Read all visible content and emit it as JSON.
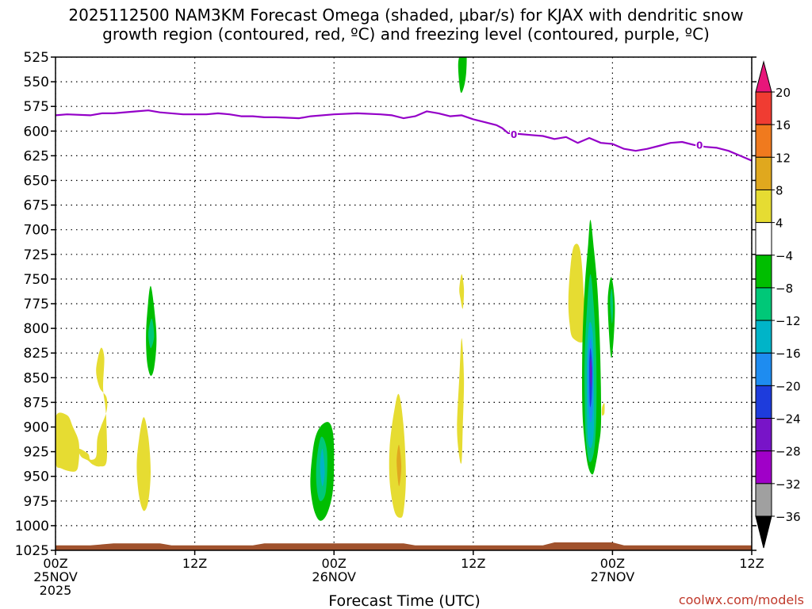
{
  "chart_data": {
    "type": "heatmap",
    "title_line1": "2025112500 NAM3KM Forecast Omega (shaded, μbar/s) for KJAX with dendritic snow",
    "title_line2": "growth region (contoured, red, ºC) and freezing level (contoured, purple, ºC)",
    "xlabel": "Forecast Time (UTC)",
    "credit": "coolwx.com/models",
    "x_range_hours": [
      0,
      60
    ],
    "y_range_hpa": [
      525,
      1025
    ],
    "y_ticks": [
      525,
      550,
      575,
      600,
      625,
      650,
      675,
      700,
      725,
      750,
      775,
      800,
      825,
      850,
      875,
      900,
      925,
      950,
      975,
      1000,
      1025
    ],
    "x_ticks": [
      {
        "hour": 0,
        "label": "00Z",
        "sub1": "25NOV",
        "sub2": "2025"
      },
      {
        "hour": 12,
        "label": "12Z",
        "sub1": "",
        "sub2": ""
      },
      {
        "hour": 24,
        "label": "00Z",
        "sub1": "26NOV",
        "sub2": ""
      },
      {
        "hour": 36,
        "label": "12Z",
        "sub1": "",
        "sub2": ""
      },
      {
        "hour": 48,
        "label": "00Z",
        "sub1": "27NOV",
        "sub2": ""
      },
      {
        "hour": 60,
        "label": "12Z",
        "sub1": "",
        "sub2": ""
      }
    ],
    "colorbar": {
      "labels": [
        "20",
        "16",
        "12",
        "8",
        "4",
        "−4",
        "−8",
        "−12",
        "−16",
        "−20",
        "−24",
        "−28",
        "−32",
        "−36"
      ],
      "bins": [
        {
          "range": ">20",
          "color": "#e8167a"
        },
        {
          "range": "16-20",
          "color": "#f03c32"
        },
        {
          "range": "12-16",
          "color": "#f07a1e"
        },
        {
          "range": "8-12",
          "color": "#e0a81e"
        },
        {
          "range": "4-8",
          "color": "#e6dc32"
        },
        {
          "range": "-4-4",
          "color": "#ffffff"
        },
        {
          "range": "-8--4",
          "color": "#00be00"
        },
        {
          "range": "-12--8",
          "color": "#00c878"
        },
        {
          "range": "-16--12",
          "color": "#00b4c8"
        },
        {
          "range": "-20--16",
          "color": "#1e8cf0"
        },
        {
          "range": "-24--20",
          "color": "#1e3cdc"
        },
        {
          "range": "-28--24",
          "color": "#7814c8"
        },
        {
          "range": "-32--28",
          "color": "#a000c8"
        },
        {
          "range": "-36--32",
          "color": "#a0a0a0"
        },
        {
          "range": "<-36",
          "color": "#000000"
        }
      ]
    },
    "freezing_level": {
      "label": "0",
      "color": "#9400c8",
      "points": [
        [
          0,
          584
        ],
        [
          1,
          583
        ],
        [
          3,
          584
        ],
        [
          4,
          582
        ],
        [
          5,
          582
        ],
        [
          7,
          580
        ],
        [
          8,
          579
        ],
        [
          9,
          581
        ],
        [
          11,
          583
        ],
        [
          13,
          583
        ],
        [
          14,
          582
        ],
        [
          15,
          583
        ],
        [
          16,
          585
        ],
        [
          17,
          585
        ],
        [
          18,
          586
        ],
        [
          19,
          586
        ],
        [
          21,
          587
        ],
        [
          22,
          585
        ],
        [
          24,
          583
        ],
        [
          26,
          582
        ],
        [
          28,
          583
        ],
        [
          29,
          584
        ],
        [
          30,
          587
        ],
        [
          31,
          585
        ],
        [
          32,
          580
        ],
        [
          33,
          582
        ],
        [
          34,
          585
        ],
        [
          35,
          584
        ],
        [
          36,
          588
        ],
        [
          37,
          591
        ],
        [
          38,
          594
        ],
        [
          38.5,
          597
        ],
        [
          39,
          602
        ],
        [
          40,
          603
        ],
        [
          41,
          604
        ],
        [
          42,
          605
        ],
        [
          43,
          608
        ],
        [
          44,
          606
        ],
        [
          45,
          612
        ],
        [
          46,
          607
        ],
        [
          47,
          612
        ],
        [
          48,
          613
        ],
        [
          49,
          618
        ],
        [
          50,
          620
        ],
        [
          51,
          618
        ],
        [
          52,
          615
        ],
        [
          53,
          612
        ],
        [
          54,
          611
        ],
        [
          55,
          614
        ],
        [
          56,
          616
        ],
        [
          57,
          617
        ],
        [
          58,
          620
        ],
        [
          59,
          625
        ],
        [
          60,
          630
        ]
      ],
      "label_positions": [
        [
          39.5,
          603
        ],
        [
          55.5,
          614
        ]
      ]
    },
    "omega_regions": [
      {
        "value": 6,
        "color": "#e6dc32",
        "points": [
          [
            0,
            890
          ],
          [
            1,
            888
          ],
          [
            1.5,
            900
          ],
          [
            2,
            915
          ],
          [
            2,
            935
          ],
          [
            1.7,
            945
          ],
          [
            0.5,
            942
          ],
          [
            0,
            935
          ]
        ]
      },
      {
        "value": 6,
        "color": "#e6dc32",
        "points": [
          [
            2,
            922
          ],
          [
            2.8,
            927
          ],
          [
            3,
            933
          ],
          [
            3.5,
            930
          ],
          [
            3.6,
            912
          ],
          [
            3.9,
            900
          ],
          [
            4.4,
            884
          ],
          [
            4.4,
            870
          ],
          [
            3.8,
            860
          ],
          [
            3.5,
            842
          ],
          [
            3.9,
            820
          ],
          [
            4.2,
            830
          ],
          [
            4.1,
            860
          ],
          [
            4.3,
            880
          ],
          [
            4.4,
            900
          ],
          [
            4.4,
            935
          ],
          [
            3.8,
            940
          ],
          [
            3.2,
            938
          ],
          [
            2.8,
            934
          ],
          [
            2.2,
            930
          ]
        ]
      },
      {
        "value": 6,
        "color": "#e6dc32",
        "points": [
          [
            7,
            940
          ],
          [
            7.2,
            912
          ],
          [
            7.6,
            890
          ],
          [
            8.0,
            910
          ],
          [
            8.2,
            945
          ],
          [
            8.0,
            975
          ],
          [
            7.6,
            985
          ],
          [
            7.2,
            970
          ]
        ]
      },
      {
        "value": -6,
        "color": "#00be00",
        "points": [
          [
            7.8,
            810
          ],
          [
            7.9,
            785
          ],
          [
            8.2,
            757
          ],
          [
            8.6,
            790
          ],
          [
            8.7,
            815
          ],
          [
            8.5,
            840
          ],
          [
            8.2,
            848
          ],
          [
            7.9,
            835
          ]
        ]
      },
      {
        "value": -10,
        "color": "#00c878",
        "points": [
          [
            8.0,
            805
          ],
          [
            8.3,
            790
          ],
          [
            8.5,
            808
          ],
          [
            8.2,
            820
          ]
        ]
      },
      {
        "value": -6,
        "color": "#00be00",
        "points": [
          [
            22,
            945
          ],
          [
            22.3,
            915
          ],
          [
            22.8,
            900
          ],
          [
            23.5,
            895
          ],
          [
            23.9,
            905
          ],
          [
            24,
            930
          ],
          [
            23.9,
            965
          ],
          [
            23.4,
            988
          ],
          [
            22.8,
            995
          ],
          [
            22.3,
            985
          ],
          [
            22.0,
            965
          ]
        ]
      },
      {
        "value": -10,
        "color": "#00c878",
        "points": [
          [
            22.5,
            935
          ],
          [
            22.9,
            910
          ],
          [
            23.4,
            925
          ],
          [
            23.3,
            965
          ],
          [
            22.8,
            975
          ],
          [
            22.5,
            960
          ]
        ]
      },
      {
        "value": -14,
        "color": "#00b4c8",
        "points": [
          [
            22.8,
            940
          ],
          [
            23.0,
            922
          ],
          [
            23.2,
            945
          ],
          [
            23.0,
            960
          ]
        ]
      },
      {
        "value": 6,
        "color": "#e6dc32",
        "points": [
          [
            28.8,
            920
          ],
          [
            29.2,
            883
          ],
          [
            29.6,
            867
          ],
          [
            30.0,
            900
          ],
          [
            30.2,
            950
          ],
          [
            30.0,
            985
          ],
          [
            29.7,
            992
          ],
          [
            29.2,
            985
          ],
          [
            28.8,
            955
          ]
        ]
      },
      {
        "value": 10,
        "color": "#e0a81e",
        "points": [
          [
            29.4,
            935
          ],
          [
            29.6,
            918
          ],
          [
            29.8,
            940
          ],
          [
            29.6,
            960
          ]
        ]
      },
      {
        "value": 6,
        "color": "#e6dc32",
        "points": [
          [
            34.8,
            760
          ],
          [
            35.0,
            745
          ],
          [
            35.2,
            760
          ],
          [
            35.1,
            780
          ],
          [
            34.9,
            770
          ]
        ]
      },
      {
        "value": 6,
        "color": "#e6dc32",
        "points": [
          [
            34.6,
            900
          ],
          [
            34.8,
            850
          ],
          [
            35.0,
            810
          ],
          [
            35.2,
            850
          ],
          [
            35.1,
            900
          ],
          [
            35.0,
            935
          ],
          [
            34.8,
            930
          ]
        ]
      },
      {
        "value": -6,
        "color": "#00be00",
        "points": [
          [
            34.7,
            532
          ],
          [
            35.0,
            520
          ],
          [
            35.4,
            520
          ],
          [
            35.4,
            540
          ],
          [
            35.2,
            555
          ],
          [
            34.9,
            560
          ]
        ]
      },
      {
        "value": 6,
        "color": "#e6dc32",
        "points": [
          [
            44.2,
            770
          ],
          [
            44.4,
            735
          ],
          [
            44.7,
            716
          ],
          [
            45.2,
            720
          ],
          [
            45.5,
            760
          ],
          [
            45.6,
            810
          ],
          [
            44.6,
            810
          ],
          [
            44.3,
            795
          ]
        ]
      },
      {
        "value": -6,
        "color": "#00be00",
        "points": [
          [
            45.4,
            820
          ],
          [
            45.6,
            760
          ],
          [
            45.9,
            715
          ],
          [
            46.1,
            690
          ],
          [
            46.4,
            720
          ],
          [
            46.7,
            760
          ],
          [
            46.9,
            810
          ],
          [
            47.0,
            860
          ],
          [
            47.0,
            900
          ],
          [
            46.8,
            920
          ],
          [
            46.6,
            935
          ],
          [
            46.3,
            948
          ],
          [
            45.9,
            940
          ],
          [
            45.6,
            915
          ],
          [
            45.4,
            880
          ]
        ]
      },
      {
        "value": -10,
        "color": "#00c878",
        "points": [
          [
            45.6,
            830
          ],
          [
            45.8,
            780
          ],
          [
            46.1,
            745
          ],
          [
            46.4,
            780
          ],
          [
            46.6,
            830
          ],
          [
            46.6,
            890
          ],
          [
            46.4,
            925
          ],
          [
            46.0,
            935
          ],
          [
            45.7,
            910
          ],
          [
            45.6,
            870
          ]
        ]
      },
      {
        "value": -14,
        "color": "#00b4c8",
        "points": [
          [
            45.8,
            830
          ],
          [
            46.0,
            795
          ],
          [
            46.3,
            805
          ],
          [
            46.4,
            850
          ],
          [
            46.4,
            900
          ],
          [
            46.2,
            920
          ],
          [
            45.9,
            915
          ],
          [
            45.8,
            880
          ]
        ]
      },
      {
        "value": -18,
        "color": "#1e8cf0",
        "points": [
          [
            45.9,
            830
          ],
          [
            46.1,
            810
          ],
          [
            46.3,
            830
          ],
          [
            46.3,
            880
          ],
          [
            46.1,
            895
          ],
          [
            45.9,
            870
          ]
        ]
      },
      {
        "value": -22,
        "color": "#1e3cdc",
        "points": [
          [
            46.0,
            838
          ],
          [
            46.1,
            820
          ],
          [
            46.25,
            840
          ],
          [
            46.2,
            870
          ],
          [
            46.05,
            878
          ]
        ]
      },
      {
        "value": -26,
        "color": "#7814c8",
        "points": [
          [
            46.08,
            840
          ],
          [
            46.15,
            830
          ],
          [
            46.2,
            845
          ],
          [
            46.15,
            860
          ]
        ]
      },
      {
        "value": 6,
        "color": "#e6dc32",
        "points": [
          [
            47.1,
            880
          ],
          [
            47.3,
            876
          ],
          [
            47.3,
            886
          ],
          [
            47.1,
            888
          ]
        ]
      },
      {
        "value": -6,
        "color": "#00be00",
        "points": [
          [
            47.6,
            770
          ],
          [
            47.9,
            748
          ],
          [
            48.2,
            775
          ],
          [
            48.1,
            810
          ],
          [
            47.9,
            830
          ],
          [
            47.7,
            805
          ]
        ]
      },
      {
        "value": -10,
        "color": "#00c878",
        "points": [
          [
            47.8,
            772
          ],
          [
            47.95,
            760
          ],
          [
            48.05,
            780
          ],
          [
            47.95,
            795
          ]
        ]
      }
    ],
    "terrain": {
      "color": "#a0522d",
      "points": [
        [
          0,
          1020
        ],
        [
          3,
          1020
        ],
        [
          5,
          1018
        ],
        [
          9,
          1018
        ],
        [
          10,
          1020
        ],
        [
          17,
          1020
        ],
        [
          18,
          1018
        ],
        [
          30,
          1018
        ],
        [
          31,
          1020
        ],
        [
          42,
          1020
        ],
        [
          43,
          1017
        ],
        [
          48,
          1017
        ],
        [
          49,
          1020
        ],
        [
          60,
          1020
        ]
      ]
    }
  }
}
